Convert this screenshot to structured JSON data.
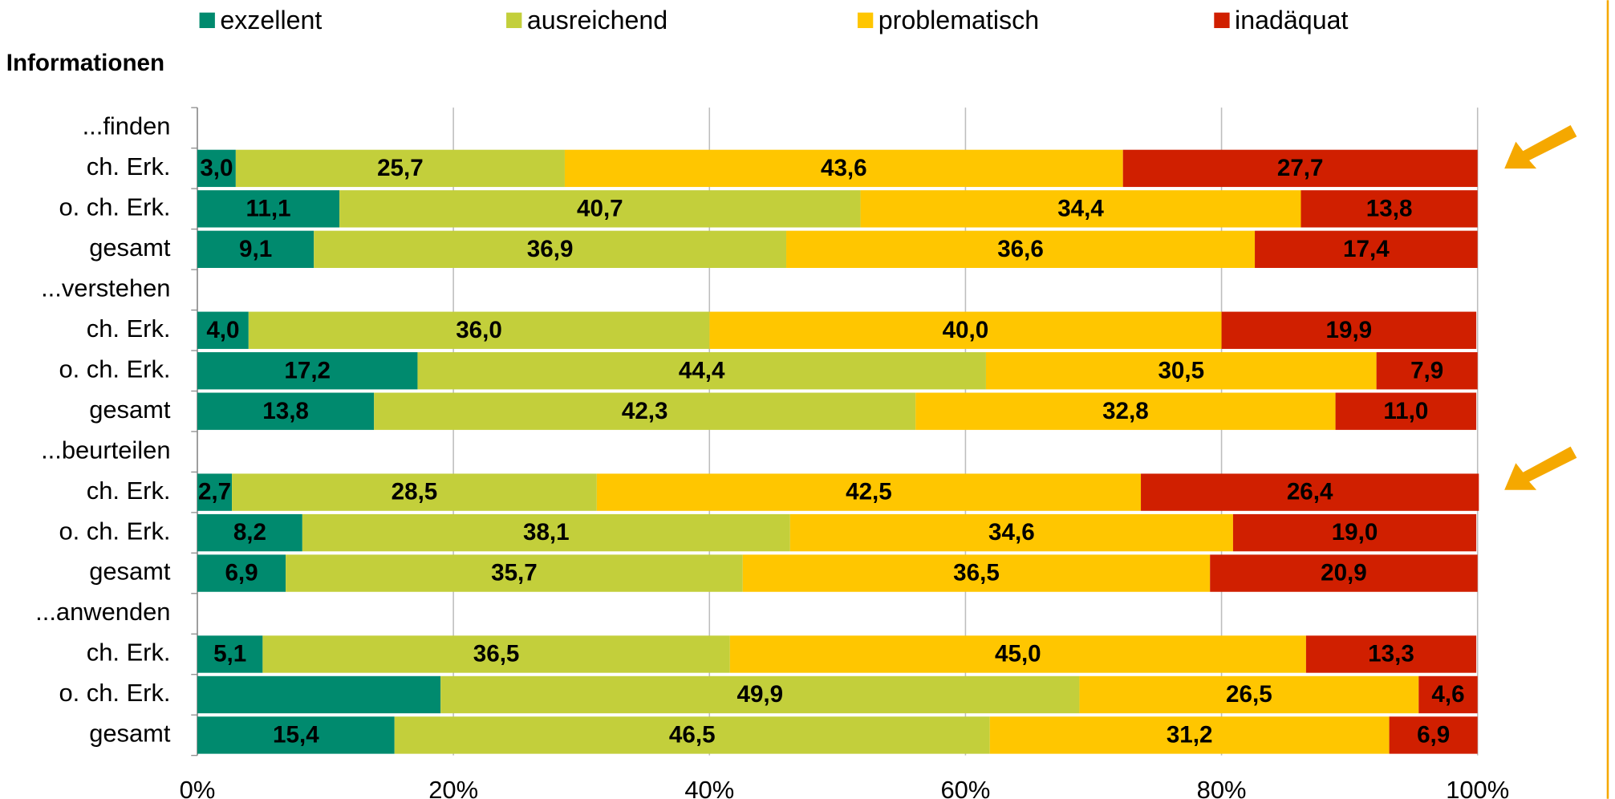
{
  "chart_data": {
    "type": "stacked-barh",
    "title": "Informationen",
    "categories": [
      "...finden",
      "ch. Erk.",
      "o. ch. Erk.",
      "gesamt",
      "...verstehen",
      "ch. Erk.",
      "o. ch. Erk.",
      "gesamt",
      "...beurteilen",
      "ch. Erk.",
      "o. ch. Erk.",
      "gesamt",
      "...anwenden",
      "ch. Erk.",
      "o. ch. Erk.",
      "gesamt"
    ],
    "series": [
      {
        "name": "exzellent",
        "color": "#008a6e",
        "values": [
          null,
          3.0,
          11.1,
          9.1,
          null,
          4.0,
          17.2,
          13.8,
          null,
          2.7,
          8.2,
          6.9,
          null,
          5.1,
          19.0,
          15.4
        ],
        "value_labels": [
          null,
          "3,0",
          "11,1",
          "9,1",
          null,
          "4,0",
          "17,2",
          "13,8",
          null,
          "2,7",
          "8,2",
          "6,9",
          null,
          "5,1",
          null,
          "15,4"
        ]
      },
      {
        "name": "ausreichend",
        "color": "#c3cf3b",
        "values": [
          null,
          25.7,
          40.7,
          36.9,
          null,
          36.0,
          44.4,
          42.3,
          null,
          28.5,
          38.1,
          35.7,
          null,
          36.5,
          49.9,
          46.5
        ],
        "value_labels": [
          null,
          "25,7",
          "40,7",
          "36,9",
          null,
          "36,0",
          "44,4",
          "42,3",
          null,
          "28,5",
          "38,1",
          "35,7",
          null,
          "36,5",
          "49,9",
          "46,5"
        ]
      },
      {
        "name": "problematisch",
        "color": "#ffc600",
        "values": [
          null,
          43.6,
          34.4,
          36.6,
          null,
          40.0,
          30.5,
          32.8,
          null,
          42.5,
          34.6,
          36.5,
          null,
          45.0,
          26.5,
          31.2
        ],
        "value_labels": [
          null,
          "43,6",
          "34,4",
          "36,6",
          null,
          "40,0",
          "30,5",
          "32,8",
          null,
          "42,5",
          "34,6",
          "36,5",
          null,
          "45,0",
          "26,5",
          "31,2"
        ]
      },
      {
        "name": "inadäquat",
        "color": "#d01f00",
        "values": [
          null,
          27.7,
          13.8,
          17.4,
          null,
          19.9,
          7.9,
          11.0,
          null,
          26.4,
          19.0,
          20.9,
          null,
          13.3,
          4.6,
          6.9
        ],
        "value_labels": [
          null,
          "27,7",
          "13,8",
          "17,4",
          null,
          "19,9",
          "7,9",
          "11,0",
          null,
          "26,4",
          "19,0",
          "20,9",
          null,
          "13,3",
          "4,6",
          "6,9"
        ]
      }
    ],
    "xlim": [
      0,
      100
    ],
    "xticks": [
      {
        "value": 0,
        "label": "0%"
      },
      {
        "value": 20,
        "label": "20%"
      },
      {
        "value": 40,
        "label": "40%"
      },
      {
        "value": 60,
        "label": "60%"
      },
      {
        "value": 80,
        "label": "80%"
      },
      {
        "value": 100,
        "label": "100%"
      }
    ],
    "grid": true
  }
}
